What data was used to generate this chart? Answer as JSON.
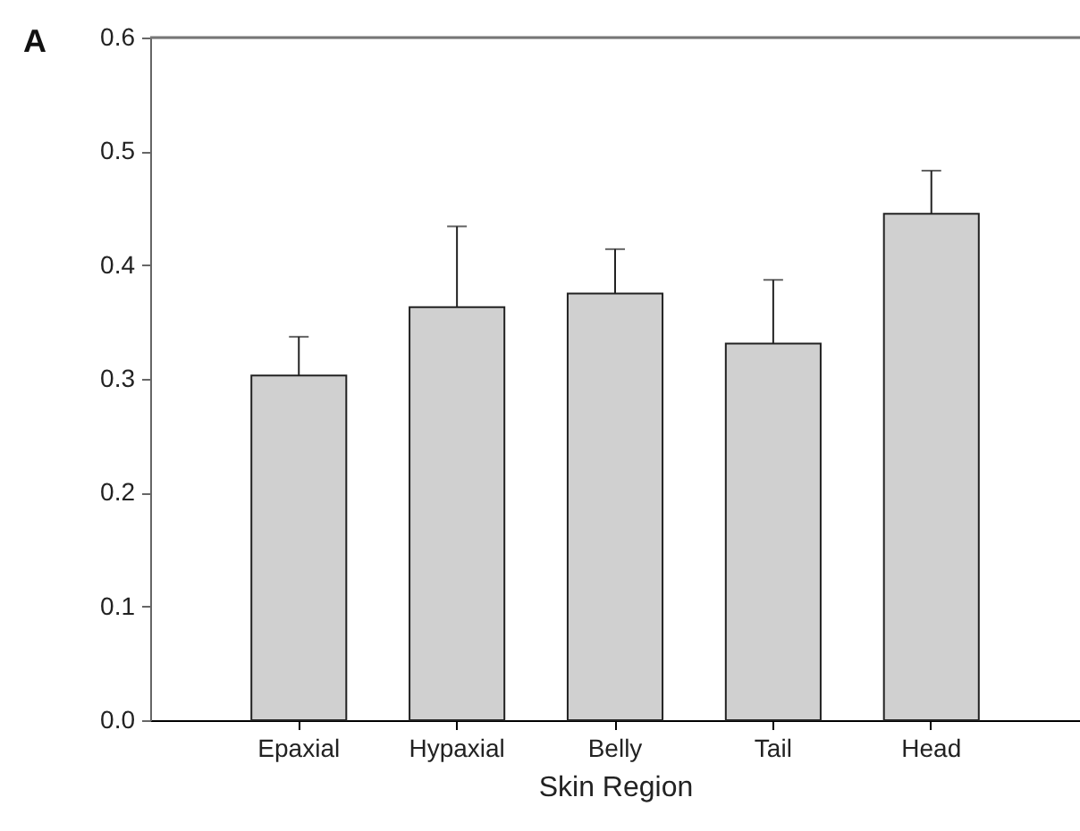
{
  "chart_data": {
    "type": "bar",
    "categories": [
      "Epaxial",
      "Hypaxial",
      "Belly",
      "Tail",
      "Head"
    ],
    "values": [
      0.303,
      0.363,
      0.375,
      0.331,
      0.445
    ],
    "errors": [
      [
        0.303,
        0.337
      ],
      [
        0.363,
        0.434
      ],
      [
        0.375,
        0.414
      ],
      [
        0.331,
        0.387
      ],
      [
        0.445,
        0.483
      ]
    ],
    "color": "#d0d0d0",
    "xlabel": "Skin Region",
    "annotations": [
      "A"
    ],
    "ylim": [
      0.0,
      0.6
    ],
    "yticks": [
      {
        "value": 0.0,
        "label": "0.0"
      },
      {
        "value": 0.1,
        "label": "0.1"
      },
      {
        "value": 0.2,
        "label": "0.2"
      },
      {
        "value": 0.3,
        "label": "0.3"
      },
      {
        "value": 0.4,
        "label": "0.4"
      },
      {
        "value": 0.5,
        "label": "0.5"
      },
      {
        "value": 0.6,
        "label": "0.6"
      }
    ],
    "grid": false
  }
}
